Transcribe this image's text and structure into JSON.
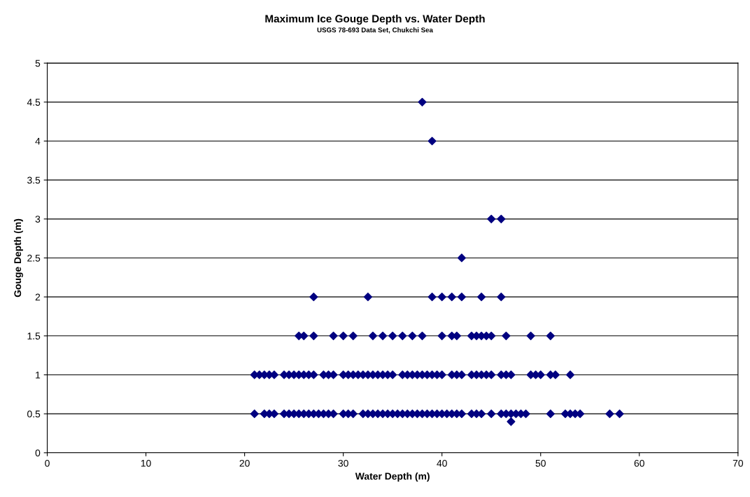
{
  "chart_data": {
    "type": "scatter",
    "title": "Maximum Ice Gouge Depth vs. Water Depth",
    "subtitle": "USGS 78-693 Data Set, Chukchi Sea",
    "xlabel": "Water Depth (m)",
    "ylabel": "Gouge Depth (m)",
    "series": [
      {
        "color": "#000080",
        "x": [
          21,
          22,
          22.5,
          23,
          24,
          24.5,
          25,
          25.5,
          26,
          26.5,
          27,
          27.5,
          28,
          28.5,
          29,
          30,
          30.5,
          31,
          32,
          32.5,
          33,
          33.5,
          34,
          34.5,
          35,
          35.5,
          36,
          36.5,
          37,
          37.5,
          38,
          38.5,
          39,
          39.5,
          40,
          40.5,
          41,
          41.5,
          42,
          43,
          43.5,
          44,
          45,
          46,
          46.5,
          47,
          47.5,
          48,
          48.5,
          47,
          51,
          52.5,
          53,
          53.5,
          54,
          57,
          58
        ],
        "values": [
          0.5,
          0.5,
          0.5,
          0.5,
          0.5,
          0.5,
          0.5,
          0.5,
          0.5,
          0.5,
          0.5,
          0.5,
          0.5,
          0.5,
          0.5,
          0.5,
          0.5,
          0.5,
          0.5,
          0.5,
          0.5,
          0.5,
          0.5,
          0.5,
          0.5,
          0.5,
          0.5,
          0.5,
          0.5,
          0.5,
          0.5,
          0.5,
          0.5,
          0.5,
          0.5,
          0.5,
          0.5,
          0.5,
          0.5,
          0.5,
          0.5,
          0.5,
          0.5,
          0.5,
          0.5,
          0.5,
          0.5,
          0.5,
          0.5,
          0.4,
          0.5,
          0.5,
          0.5,
          0.5,
          0.5,
          0.5,
          0.5
        ]
      },
      {
        "color": "#000080",
        "x": [
          21,
          21.5,
          22,
          22.5,
          23,
          24,
          24.5,
          25,
          25.5,
          26,
          26.5,
          27,
          28,
          28.5,
          29,
          30,
          30.5,
          31,
          31.5,
          32,
          32.5,
          33,
          33.5,
          34,
          34.5,
          35,
          36,
          36.5,
          37,
          37.5,
          38,
          38.5,
          39,
          39.5,
          40,
          41,
          41.5,
          42,
          43,
          43.5,
          44,
          44.5,
          45,
          46,
          46.5,
          47,
          49,
          49.5,
          50,
          51,
          51.5,
          53
        ],
        "values": [
          1,
          1,
          1,
          1,
          1,
          1,
          1,
          1,
          1,
          1,
          1,
          1,
          1,
          1,
          1,
          1,
          1,
          1,
          1,
          1,
          1,
          1,
          1,
          1,
          1,
          1,
          1,
          1,
          1,
          1,
          1,
          1,
          1,
          1,
          1,
          1,
          1,
          1,
          1,
          1,
          1,
          1,
          1,
          1,
          1,
          1,
          1,
          1,
          1,
          1,
          1,
          1
        ]
      },
      {
        "color": "#000080",
        "x": [
          25.5,
          26,
          27,
          29,
          30,
          31,
          33,
          34,
          35,
          36,
          37,
          38,
          40,
          41,
          41.5,
          43,
          43.5,
          44,
          44.5,
          45,
          46.5,
          49,
          51
        ],
        "values": [
          1.5,
          1.5,
          1.5,
          1.5,
          1.5,
          1.5,
          1.5,
          1.5,
          1.5,
          1.5,
          1.5,
          1.5,
          1.5,
          1.5,
          1.5,
          1.5,
          1.5,
          1.5,
          1.5,
          1.5,
          1.5,
          1.5,
          1.5
        ]
      },
      {
        "color": "#000080",
        "x": [
          27,
          32.5,
          39,
          40,
          41,
          42,
          44,
          46,
          42,
          45,
          46,
          39,
          38
        ],
        "values": [
          2,
          2,
          2,
          2,
          2,
          2,
          2,
          2,
          2.5,
          3,
          3,
          4,
          4.5
        ]
      }
    ],
    "marker": "diamond",
    "xlim": [
      0,
      70
    ],
    "xticks": [
      0,
      10,
      20,
      30,
      40,
      50,
      60,
      70
    ],
    "ylim": [
      0,
      5
    ],
    "yticks": [
      0,
      0.5,
      1,
      1.5,
      2,
      2.5,
      3,
      3.5,
      4,
      4.5,
      5
    ],
    "grid": "y",
    "legend": false
  }
}
